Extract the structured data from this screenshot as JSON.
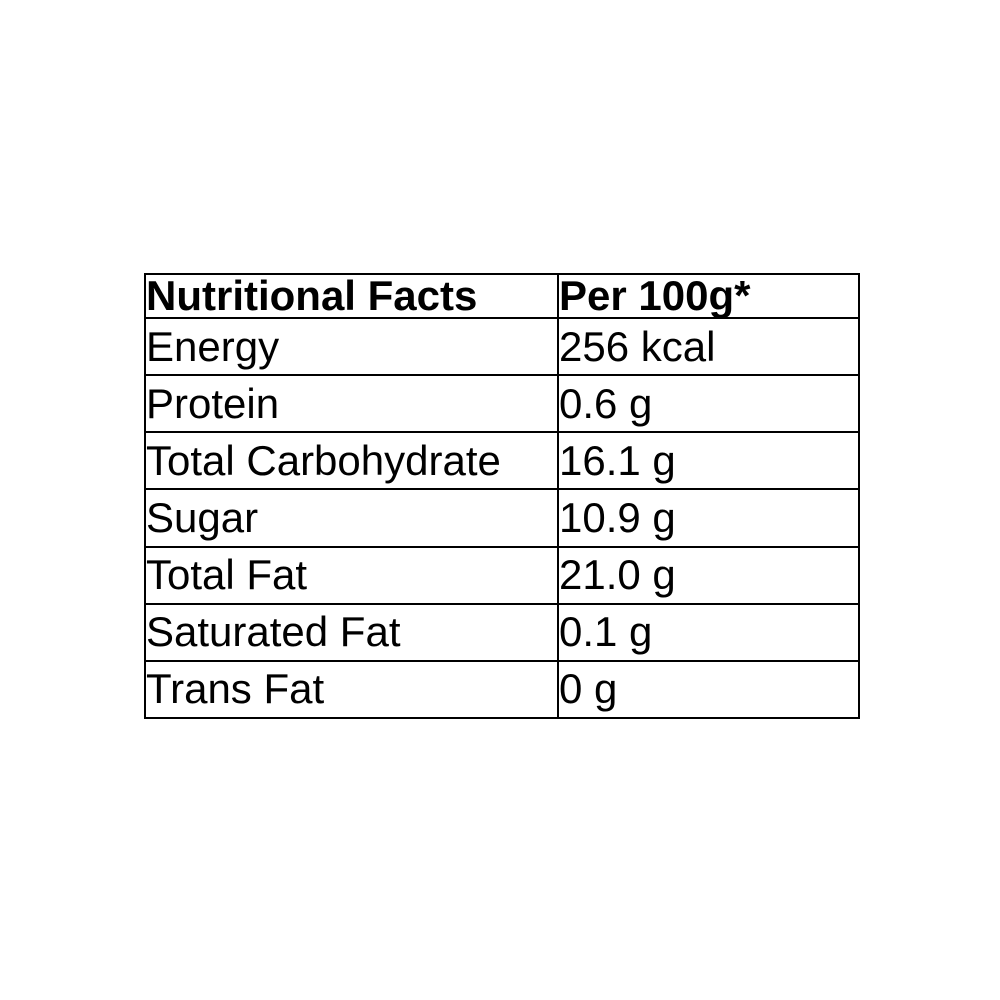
{
  "table": {
    "header": {
      "label_col": "Nutritional Facts",
      "value_col": "Per 100g*"
    },
    "rows": [
      {
        "label": "Energy",
        "value": "256 kcal"
      },
      {
        "label": "Protein",
        "value": "0.6 g"
      },
      {
        "label": "Total Carbohydrate",
        "value": "16.1 g"
      },
      {
        "label": "Sugar",
        "value": "10.9 g"
      },
      {
        "label": "Total Fat",
        "value": "21.0 g"
      },
      {
        "label": "Saturated Fat",
        "value": "0.1 g"
      },
      {
        "label": "Trans Fat",
        "value": "0 g"
      }
    ]
  },
  "colors": {
    "background": "#ffffff",
    "border": "#000000",
    "text": "#000000"
  }
}
